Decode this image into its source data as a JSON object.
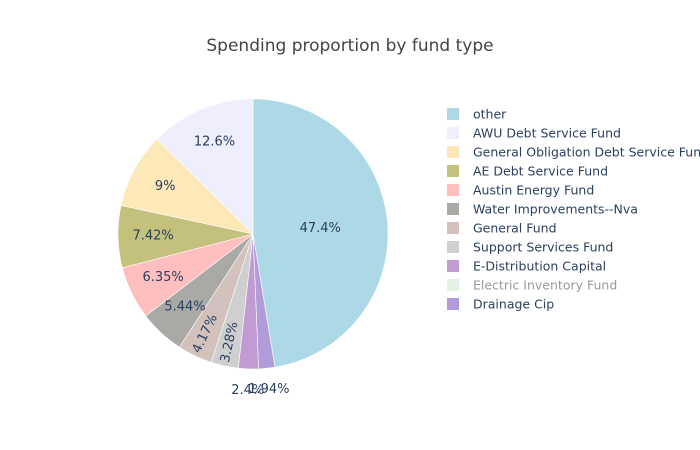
{
  "chart_data": {
    "type": "pie",
    "title": "Spending proportion by fund type",
    "legend_position": "right",
    "slices": [
      {
        "label": "other",
        "value": 47.4,
        "text": "47.4%",
        "color": "#add8e6",
        "label_pos": "inside"
      },
      {
        "label": "Drainage Cip",
        "value": 1.94,
        "text": "1.94%",
        "color": "#b19cd9",
        "label_pos": "outside"
      },
      {
        "label": "E-Distribution Capital",
        "value": 2.4,
        "text": "2.4%",
        "color": "#c39bd3",
        "label_pos": "outside"
      },
      {
        "label": "Electric Inventory Fund",
        "value": 0.0,
        "text": "",
        "color": "#d5e8d4",
        "label_pos": "none",
        "hidden": true
      },
      {
        "label": "Support Services Fund",
        "value": 3.28,
        "text": "3.28%",
        "color": "#cfcfcf",
        "label_pos": "inside-rotated"
      },
      {
        "label": "General Fund",
        "value": 4.17,
        "text": "4.17%",
        "color": "#d2c1bd",
        "label_pos": "inside-rotated"
      },
      {
        "label": "Water Improvements--Nva",
        "value": 5.44,
        "text": "5.44%",
        "color": "#a9a9a5",
        "label_pos": "inside"
      },
      {
        "label": "Austin Energy Fund",
        "value": 6.35,
        "text": "6.35%",
        "color": "#ffbfbf",
        "label_pos": "inside"
      },
      {
        "label": "AE Debt Service Fund",
        "value": 7.42,
        "text": "7.42%",
        "color": "#c4c17c",
        "label_pos": "inside"
      },
      {
        "label": "General Obligation Debt Service Fund",
        "value": 9.0,
        "text": "9%",
        "color": "#fde8b8",
        "label_pos": "inside"
      },
      {
        "label": "AWU Debt Service Fund",
        "value": 12.6,
        "text": "12.6%",
        "color": "#eeeefd",
        "label_pos": "inside"
      }
    ],
    "legend_order": [
      "other",
      "AWU Debt Service Fund",
      "General Obligation Debt Service Fund",
      "AE Debt Service Fund",
      "Austin Energy Fund",
      "Water Improvements--Nva",
      "General Fund",
      "Support Services Fund",
      "E-Distribution Capital",
      "Electric Inventory Fund",
      "Drainage Cip"
    ]
  }
}
